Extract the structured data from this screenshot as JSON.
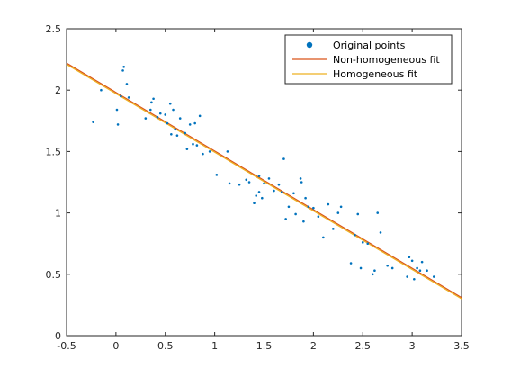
{
  "chart_data": {
    "type": "scatter",
    "title": "",
    "xlabel": "",
    "ylabel": "",
    "xlim": [
      -0.5,
      3.5
    ],
    "ylim": [
      0,
      2.5
    ],
    "grid": false,
    "legend_position": "top-right",
    "x_ticks": [
      "-0.5",
      "0",
      "0.5",
      "1",
      "1.5",
      "2",
      "2.5",
      "3",
      "3.5"
    ],
    "y_ticks": [
      "0",
      "0.5",
      "1",
      "1.5",
      "2",
      "2.5"
    ],
    "colors": {
      "points": "#0072bd",
      "non_homogeneous": "#d95319",
      "homogeneous": "#edb120"
    },
    "series": [
      {
        "name": "Original points",
        "kind": "scatter",
        "points": [
          [
            -0.23,
            1.74
          ],
          [
            -0.15,
            2.0
          ],
          [
            0.02,
            1.72
          ],
          [
            0.05,
            1.95
          ],
          [
            0.07,
            2.16
          ],
          [
            0.08,
            2.19
          ],
          [
            0.01,
            1.84
          ],
          [
            0.11,
            2.05
          ],
          [
            0.13,
            1.94
          ],
          [
            0.3,
            1.77
          ],
          [
            0.35,
            1.84
          ],
          [
            0.36,
            1.9
          ],
          [
            0.38,
            1.93
          ],
          [
            0.42,
            1.78
          ],
          [
            0.45,
            1.81
          ],
          [
            0.5,
            1.8
          ],
          [
            0.52,
            1.73
          ],
          [
            0.55,
            1.89
          ],
          [
            0.56,
            1.64
          ],
          [
            0.58,
            1.84
          ],
          [
            0.6,
            1.68
          ],
          [
            0.62,
            1.63
          ],
          [
            0.65,
            1.77
          ],
          [
            0.7,
            1.65
          ],
          [
            0.72,
            1.52
          ],
          [
            0.75,
            1.72
          ],
          [
            0.78,
            1.56
          ],
          [
            0.8,
            1.73
          ],
          [
            0.82,
            1.55
          ],
          [
            0.85,
            1.79
          ],
          [
            0.88,
            1.48
          ],
          [
            0.95,
            1.5
          ],
          [
            1.02,
            1.31
          ],
          [
            1.13,
            1.5
          ],
          [
            1.15,
            1.24
          ],
          [
            1.25,
            1.23
          ],
          [
            1.32,
            1.27
          ],
          [
            1.35,
            1.25
          ],
          [
            1.4,
            1.08
          ],
          [
            1.42,
            1.14
          ],
          [
            1.45,
            1.17
          ],
          [
            1.45,
            1.3
          ],
          [
            1.48,
            1.12
          ],
          [
            1.5,
            1.24
          ],
          [
            1.55,
            1.28
          ],
          [
            1.6,
            1.18
          ],
          [
            1.65,
            1.23
          ],
          [
            1.68,
            1.17
          ],
          [
            1.7,
            1.44
          ],
          [
            1.72,
            0.95
          ],
          [
            1.75,
            1.05
          ],
          [
            1.8,
            1.16
          ],
          [
            1.82,
            0.99
          ],
          [
            1.87,
            1.28
          ],
          [
            1.88,
            1.25
          ],
          [
            1.9,
            0.93
          ],
          [
            1.92,
            1.12
          ],
          [
            1.95,
            1.05
          ],
          [
            2.0,
            1.04
          ],
          [
            2.05,
            0.97
          ],
          [
            2.1,
            0.8
          ],
          [
            2.15,
            1.07
          ],
          [
            2.2,
            0.87
          ],
          [
            2.25,
            1.0
          ],
          [
            2.28,
            1.05
          ],
          [
            2.38,
            0.59
          ],
          [
            2.42,
            0.82
          ],
          [
            2.45,
            0.99
          ],
          [
            2.48,
            0.55
          ],
          [
            2.5,
            0.76
          ],
          [
            2.55,
            0.75
          ],
          [
            2.6,
            0.5
          ],
          [
            2.62,
            0.53
          ],
          [
            2.65,
            1.0
          ],
          [
            2.68,
            0.84
          ],
          [
            2.75,
            0.57
          ],
          [
            2.8,
            0.55
          ],
          [
            2.95,
            0.48
          ],
          [
            2.97,
            0.64
          ],
          [
            3.0,
            0.61
          ],
          [
            3.02,
            0.46
          ],
          [
            3.05,
            0.55
          ],
          [
            3.08,
            0.53
          ],
          [
            3.1,
            0.6
          ],
          [
            3.15,
            0.53
          ],
          [
            3.22,
            0.48
          ]
        ]
      },
      {
        "name": "Non-homogeneous fit",
        "kind": "line",
        "x": [
          -0.5,
          3.5
        ],
        "y": [
          2.22,
          0.31
        ]
      },
      {
        "name": "Homogeneous fit",
        "kind": "line",
        "x": [
          -0.5,
          3.5
        ],
        "y": [
          2.21,
          0.3
        ]
      }
    ]
  }
}
